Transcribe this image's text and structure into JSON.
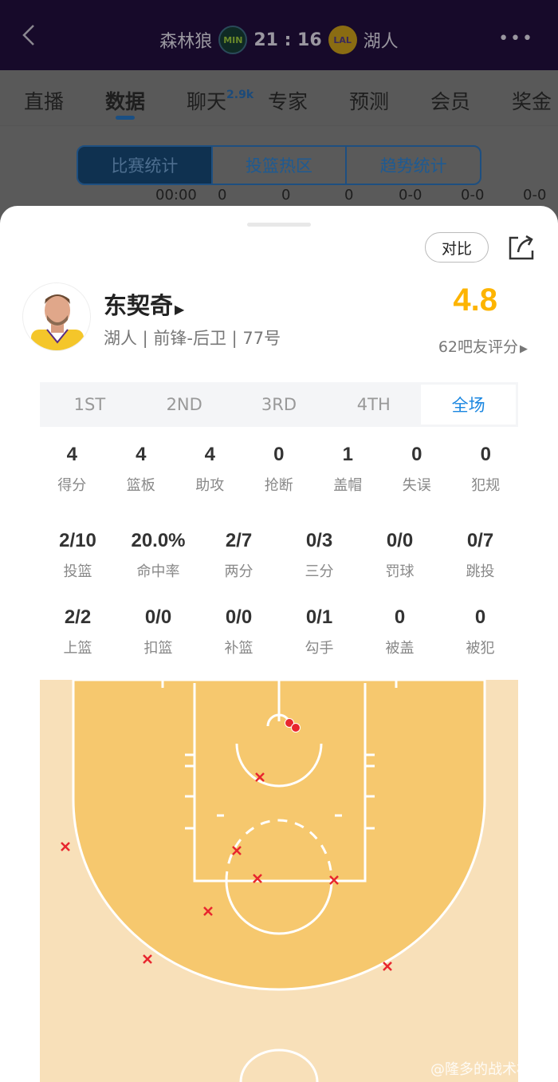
{
  "header": {
    "home": "森林狼",
    "home_abbr": "MIN",
    "score": "21 : 16",
    "away_abbr": "LAL",
    "away": "湖人"
  },
  "tabs": [
    {
      "label": "直播"
    },
    {
      "label": "数据"
    },
    {
      "label": "聊天",
      "badge": "2.9k"
    },
    {
      "label": "专家"
    },
    {
      "label": "预测"
    },
    {
      "label": "会员"
    },
    {
      "label": "奖金"
    }
  ],
  "segments": [
    "比赛统计",
    "投篮热区",
    "趋势统计"
  ],
  "background_row": [
    "00:00",
    "0",
    "0",
    "0",
    "0-0",
    "0-0",
    "0-0"
  ],
  "sheet": {
    "compare": "对比",
    "player": {
      "name": "东契奇",
      "info": "湖人 | 前锋-后卫 | 77号",
      "rating": "4.8",
      "rating_count": "62吧友评分"
    },
    "periods": [
      {
        "label": "1ST"
      },
      {
        "label": "2ND"
      },
      {
        "label": "3RD"
      },
      {
        "label": "4TH"
      },
      {
        "label": "全场",
        "active": true
      }
    ],
    "stats_row1": [
      {
        "v": "4",
        "l": "得分"
      },
      {
        "v": "4",
        "l": "篮板"
      },
      {
        "v": "4",
        "l": "助攻"
      },
      {
        "v": "0",
        "l": "抢断"
      },
      {
        "v": "1",
        "l": "盖帽"
      },
      {
        "v": "0",
        "l": "失误"
      },
      {
        "v": "0",
        "l": "犯规"
      }
    ],
    "stats_row2": [
      {
        "v": "2/10",
        "l": "投篮"
      },
      {
        "v": "20.0%",
        "l": "命中率"
      },
      {
        "v": "2/7",
        "l": "两分"
      },
      {
        "v": "0/3",
        "l": "三分"
      },
      {
        "v": "0/0",
        "l": "罚球"
      },
      {
        "v": "0/7",
        "l": "跳投"
      }
    ],
    "stats_row3": [
      {
        "v": "2/2",
        "l": "上篮"
      },
      {
        "v": "0/0",
        "l": "扣篮"
      },
      {
        "v": "0/0",
        "l": "补篮"
      },
      {
        "v": "0/1",
        "l": "勾手"
      },
      {
        "v": "0",
        "l": "被盖"
      },
      {
        "v": "0",
        "l": "被犯"
      }
    ],
    "shots": {
      "made": 2,
      "missed": 8
    },
    "colors": {
      "made": "#e8262e",
      "missed": "#e8262e",
      "paint": "#f6c86e",
      "floor": "#f8e0b9",
      "accent": "#1a86e0",
      "rating": "#fdb400"
    }
  },
  "watermark": "@隆多的战术板"
}
